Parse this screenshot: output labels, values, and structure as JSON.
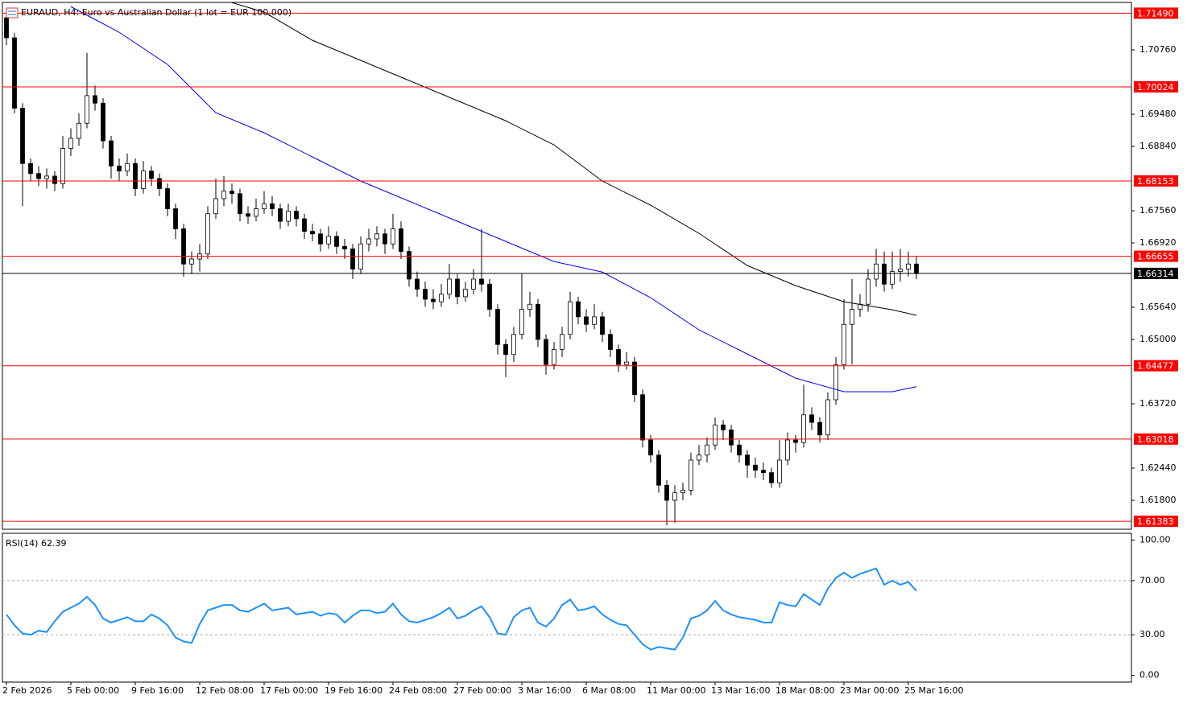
{
  "chart_data": [
    {
      "type": "candlestick",
      "title": "EURAUD, H4: Euro vs Australian Dollar (1 lot = EUR 100,000)",
      "categories": [
        "2 Feb 2026",
        null,
        null,
        null,
        null,
        null,
        null,
        null,
        "5 Feb 00:00",
        null,
        null,
        null,
        null,
        null,
        null,
        null,
        "9 Feb 16:00",
        null,
        null,
        null,
        null,
        null,
        null,
        null,
        "12 Feb 08:00",
        null,
        null,
        null,
        null,
        null,
        null,
        null,
        "17 Feb 00:00",
        null,
        null,
        null,
        null,
        null,
        null,
        null,
        "19 Feb 16:00",
        null,
        null,
        null,
        null,
        null,
        null,
        null,
        "24 Feb 08:00",
        null,
        null,
        null,
        null,
        null,
        null,
        null,
        "27 Feb 00:00",
        null,
        null,
        null,
        null,
        null,
        null,
        null,
        "3 Mar 16:00",
        null,
        null,
        null,
        null,
        null,
        null,
        null,
        "6 Mar 08:00",
        null,
        null,
        null,
        null,
        null,
        null,
        null,
        "11 Mar 00:00",
        null,
        null,
        null,
        null,
        null,
        null,
        null,
        "13 Mar 16:00",
        null,
        null,
        null,
        null,
        null,
        null,
        null,
        "18 Mar 08:00",
        null,
        null,
        null,
        null,
        null,
        null,
        null,
        "23 Mar 00:00",
        null,
        null,
        null,
        null,
        null,
        null,
        null,
        "25 Mar 16:00",
        null
      ],
      "ohlc": [
        [
          1.714,
          1.715,
          1.7085,
          1.71
        ],
        [
          1.71,
          1.711,
          1.695,
          1.696
        ],
        [
          1.696,
          1.697,
          1.6765,
          1.685
        ],
        [
          1.685,
          1.686,
          1.6815,
          1.683
        ],
        [
          1.683,
          1.6845,
          1.6805,
          1.682
        ],
        [
          1.682,
          1.684,
          1.68,
          1.6825
        ],
        [
          1.6825,
          1.6835,
          1.6795,
          1.681
        ],
        [
          1.681,
          1.6905,
          1.68,
          1.688
        ],
        [
          1.688,
          1.692,
          1.6865,
          1.69
        ],
        [
          1.69,
          1.695,
          1.6885,
          1.693
        ],
        [
          1.693,
          1.707,
          1.692,
          1.6985
        ],
        [
          1.6985,
          1.7005,
          1.6955,
          1.697
        ],
        [
          1.697,
          1.698,
          1.688,
          1.6895
        ],
        [
          1.6895,
          1.6905,
          1.682,
          1.6845
        ],
        [
          1.6845,
          1.686,
          1.6815,
          1.6835
        ],
        [
          1.6835,
          1.687,
          1.6825,
          1.685
        ],
        [
          1.685,
          1.686,
          1.6785,
          1.68
        ],
        [
          1.68,
          1.6855,
          1.679,
          1.6835
        ],
        [
          1.6835,
          1.6845,
          1.6805,
          1.682
        ],
        [
          1.682,
          1.683,
          1.6785,
          1.68
        ],
        [
          1.68,
          1.681,
          1.6745,
          1.676
        ],
        [
          1.676,
          1.677,
          1.67,
          1.672
        ],
        [
          1.672,
          1.673,
          1.6625,
          1.665
        ],
        [
          1.665,
          1.6675,
          1.663,
          1.666
        ],
        [
          1.666,
          1.669,
          1.6635,
          1.667
        ],
        [
          1.667,
          1.6765,
          1.666,
          1.675
        ],
        [
          1.675,
          1.682,
          1.674,
          1.678
        ],
        [
          1.678,
          1.6825,
          1.6765,
          1.6795
        ],
        [
          1.6795,
          1.681,
          1.677,
          1.679
        ],
        [
          1.679,
          1.68,
          1.6735,
          1.675
        ],
        [
          1.675,
          1.6765,
          1.673,
          1.6745
        ],
        [
          1.6745,
          1.678,
          1.6735,
          1.676
        ],
        [
          1.676,
          1.6795,
          1.675,
          1.677
        ],
        [
          1.677,
          1.6785,
          1.6745,
          1.676
        ],
        [
          1.676,
          1.677,
          1.672,
          1.6735
        ],
        [
          1.6735,
          1.677,
          1.6725,
          1.6755
        ],
        [
          1.6755,
          1.6765,
          1.6725,
          1.674
        ],
        [
          1.674,
          1.675,
          1.67,
          1.6715
        ],
        [
          1.6715,
          1.673,
          1.6695,
          1.671
        ],
        [
          1.671,
          1.672,
          1.6675,
          1.669
        ],
        [
          1.669,
          1.6725,
          1.668,
          1.6705
        ],
        [
          1.6705,
          1.6715,
          1.667,
          1.6685
        ],
        [
          1.6685,
          1.67,
          1.666,
          1.668
        ],
        [
          1.668,
          1.669,
          1.662,
          1.664
        ],
        [
          1.664,
          1.6705,
          1.663,
          1.669
        ],
        [
          1.669,
          1.672,
          1.6675,
          1.67
        ],
        [
          1.67,
          1.6725,
          1.6685,
          1.671
        ],
        [
          1.671,
          1.672,
          1.667,
          1.669
        ],
        [
          1.669,
          1.675,
          1.668,
          1.672
        ],
        [
          1.672,
          1.6735,
          1.666,
          1.6675
        ],
        [
          1.6675,
          1.6685,
          1.6605,
          1.662
        ],
        [
          1.662,
          1.6635,
          1.6585,
          1.66
        ],
        [
          1.66,
          1.6615,
          1.6565,
          1.658
        ],
        [
          1.658,
          1.66,
          1.656,
          1.6575
        ],
        [
          1.6575,
          1.661,
          1.6565,
          1.659
        ],
        [
          1.659,
          1.665,
          1.658,
          1.662
        ],
        [
          1.662,
          1.663,
          1.657,
          1.6585
        ],
        [
          1.6585,
          1.6615,
          1.6575,
          1.66
        ],
        [
          1.66,
          1.664,
          1.659,
          1.662
        ],
        [
          1.662,
          1.672,
          1.6595,
          1.661
        ],
        [
          1.661,
          1.662,
          1.6545,
          1.656
        ],
        [
          1.656,
          1.657,
          1.647,
          1.649
        ],
        [
          1.649,
          1.65,
          1.6425,
          1.647
        ],
        [
          1.647,
          1.6525,
          1.6455,
          1.651
        ],
        [
          1.651,
          1.663,
          1.65,
          1.656
        ],
        [
          1.656,
          1.6595,
          1.6545,
          1.657
        ],
        [
          1.657,
          1.658,
          1.6485,
          1.65
        ],
        [
          1.65,
          1.651,
          1.643,
          1.645
        ],
        [
          1.645,
          1.6495,
          1.644,
          1.648
        ],
        [
          1.648,
          1.6525,
          1.6465,
          1.651
        ],
        [
          1.651,
          1.6595,
          1.65,
          1.6575
        ],
        [
          1.6575,
          1.6585,
          1.653,
          1.6545
        ],
        [
          1.6545,
          1.656,
          1.6515,
          1.653
        ],
        [
          1.653,
          1.657,
          1.652,
          1.6545
        ],
        [
          1.6545,
          1.6555,
          1.6495,
          1.651
        ],
        [
          1.651,
          1.652,
          1.6465,
          1.648
        ],
        [
          1.648,
          1.649,
          1.6435,
          1.645
        ],
        [
          1.645,
          1.6475,
          1.644,
          1.6455
        ],
        [
          1.6455,
          1.6465,
          1.6375,
          1.639
        ],
        [
          1.639,
          1.64,
          1.6285,
          1.63
        ],
        [
          1.63,
          1.631,
          1.6255,
          1.627
        ],
        [
          1.627,
          1.628,
          1.6195,
          1.621
        ],
        [
          1.621,
          1.622,
          1.613,
          1.618
        ],
        [
          1.618,
          1.621,
          1.6135,
          1.6195
        ],
        [
          1.6195,
          1.6215,
          1.618,
          1.62
        ],
        [
          1.62,
          1.6275,
          1.619,
          1.626
        ],
        [
          1.626,
          1.629,
          1.625,
          1.627
        ],
        [
          1.627,
          1.6305,
          1.6255,
          1.629
        ],
        [
          1.629,
          1.6345,
          1.628,
          1.633
        ],
        [
          1.633,
          1.634,
          1.63,
          1.632
        ],
        [
          1.632,
          1.633,
          1.6275,
          1.629
        ],
        [
          1.629,
          1.63,
          1.6255,
          1.627
        ],
        [
          1.627,
          1.628,
          1.6225,
          1.625
        ],
        [
          1.625,
          1.6265,
          1.6225,
          1.624
        ],
        [
          1.624,
          1.6255,
          1.622,
          1.6235
        ],
        [
          1.6235,
          1.6245,
          1.6205,
          1.6215
        ],
        [
          1.6215,
          1.63,
          1.6205,
          1.626
        ],
        [
          1.626,
          1.6315,
          1.625,
          1.63
        ],
        [
          1.63,
          1.631,
          1.6275,
          1.6295
        ],
        [
          1.6295,
          1.641,
          1.6285,
          1.635
        ],
        [
          1.635,
          1.6365,
          1.632,
          1.6335
        ],
        [
          1.6335,
          1.6345,
          1.6295,
          1.631
        ],
        [
          1.631,
          1.6395,
          1.63,
          1.638
        ],
        [
          1.638,
          1.6465,
          1.637,
          1.645
        ],
        [
          1.645,
          1.658,
          1.644,
          1.653
        ],
        [
          1.653,
          1.662,
          1.645,
          1.656
        ],
        [
          1.656,
          1.659,
          1.6545,
          1.657
        ],
        [
          1.657,
          1.664,
          1.6555,
          1.662
        ],
        [
          1.662,
          1.668,
          1.6605,
          1.665
        ],
        [
          1.665,
          1.6675,
          1.6595,
          1.661
        ],
        [
          1.661,
          1.6675,
          1.66,
          1.6635
        ],
        [
          1.6635,
          1.668,
          1.6615,
          1.664
        ],
        [
          1.664,
          1.6675,
          1.6625,
          1.665
        ],
        [
          1.665,
          1.6665,
          1.662,
          1.6631
        ]
      ],
      "series": [
        {
          "color": "#0000ff",
          "x": [
            8,
            14,
            20,
            26,
            32,
            38,
            44,
            50,
            56,
            62,
            68,
            74,
            80,
            86,
            92,
            98,
            104,
            110,
            113
          ],
          "values": [
            1.7162,
            1.7111,
            1.7047,
            1.6951,
            1.6911,
            1.6863,
            1.6815,
            1.6775,
            1.6735,
            1.6695,
            1.6655,
            1.6634,
            1.6583,
            1.6519,
            1.6471,
            1.6423,
            1.6396,
            1.6396,
            1.6406
          ]
        },
        {
          "color": "#000000",
          "x": [
            28,
            32,
            38,
            44,
            50,
            56,
            62,
            68,
            74,
            80,
            86,
            92,
            98,
            104,
            110,
            113
          ],
          "values": [
            1.717,
            1.7151,
            1.7095,
            1.7055,
            1.7015,
            1.6975,
            1.6935,
            1.6887,
            1.6815,
            1.6767,
            1.6711,
            1.6647,
            1.6607,
            1.6575,
            1.6559,
            1.6548
          ]
        }
      ],
      "levels": [
        {
          "value": 1.7149,
          "label": "1.71490",
          "color": "#ff0000"
        },
        {
          "value": 1.70024,
          "label": "1.70024",
          "color": "#ff0000"
        },
        {
          "value": 1.68153,
          "label": "1.68153",
          "color": "#ff0000"
        },
        {
          "value": 1.66655,
          "label": "1.66655",
          "color": "#ff0000"
        },
        {
          "value": 1.64477,
          "label": "1.64477",
          "color": "#ff0000"
        },
        {
          "value": 1.63018,
          "label": "1.63018",
          "color": "#ff0000"
        },
        {
          "value": 1.61383,
          "label": "1.61383",
          "color": "#ff0000"
        },
        {
          "value": 1.66314,
          "label": "1.66314",
          "color": "#000000"
        }
      ],
      "ylim": [
        1.61224,
        1.71704
      ],
      "yticks": [
        {
          "value": 1.7076,
          "label": "1.70760"
        },
        {
          "value": 1.6948,
          "label": "1.69480"
        },
        {
          "value": 1.6884,
          "label": "1.68840"
        },
        {
          "value": 1.6756,
          "label": "1.67560"
        },
        {
          "value": 1.6692,
          "label": "1.66920"
        },
        {
          "value": 1.6564,
          "label": "1.65640"
        },
        {
          "value": 1.65,
          "label": "1.65000"
        },
        {
          "value": 1.6372,
          "label": "1.63720"
        },
        {
          "value": 1.6244,
          "label": "1.62440"
        },
        {
          "value": 1.618,
          "label": "1.61800"
        }
      ]
    },
    {
      "type": "line",
      "title": "RSI(14) 62.39",
      "color": "#1e90ff",
      "values": [
        45,
        37,
        31,
        30,
        33,
        32,
        40,
        47,
        50,
        53,
        58,
        52,
        42,
        39,
        41,
        43,
        40,
        40,
        45,
        42,
        37,
        28,
        25,
        24,
        38,
        48,
        50,
        52,
        52,
        48,
        47,
        50,
        53,
        48,
        49,
        50,
        45,
        46,
        47,
        44,
        46,
        45,
        39,
        44,
        48,
        48,
        46,
        47,
        53,
        45,
        40,
        39,
        41,
        43,
        46,
        50,
        42,
        44,
        48,
        51,
        43,
        31,
        30,
        43,
        48,
        50,
        39,
        36,
        42,
        52,
        56,
        48,
        49,
        51,
        45,
        41,
        38,
        37,
        30,
        23,
        19,
        21,
        20,
        19,
        28,
        42,
        44,
        48,
        55,
        48,
        45,
        43,
        42,
        41,
        39,
        39,
        54,
        52,
        51,
        60,
        56,
        52,
        64,
        72,
        76,
        72,
        75,
        77,
        79,
        67,
        70,
        67,
        69,
        62.39
      ],
      "levels": [
        70,
        30
      ],
      "ylim": [
        -5,
        105
      ],
      "yticks": [
        {
          "value": 100,
          "label": "100.00"
        },
        {
          "value": 70,
          "label": "70.00"
        },
        {
          "value": 30,
          "label": "30.00"
        },
        {
          "value": 0,
          "label": "0.00"
        }
      ]
    }
  ]
}
